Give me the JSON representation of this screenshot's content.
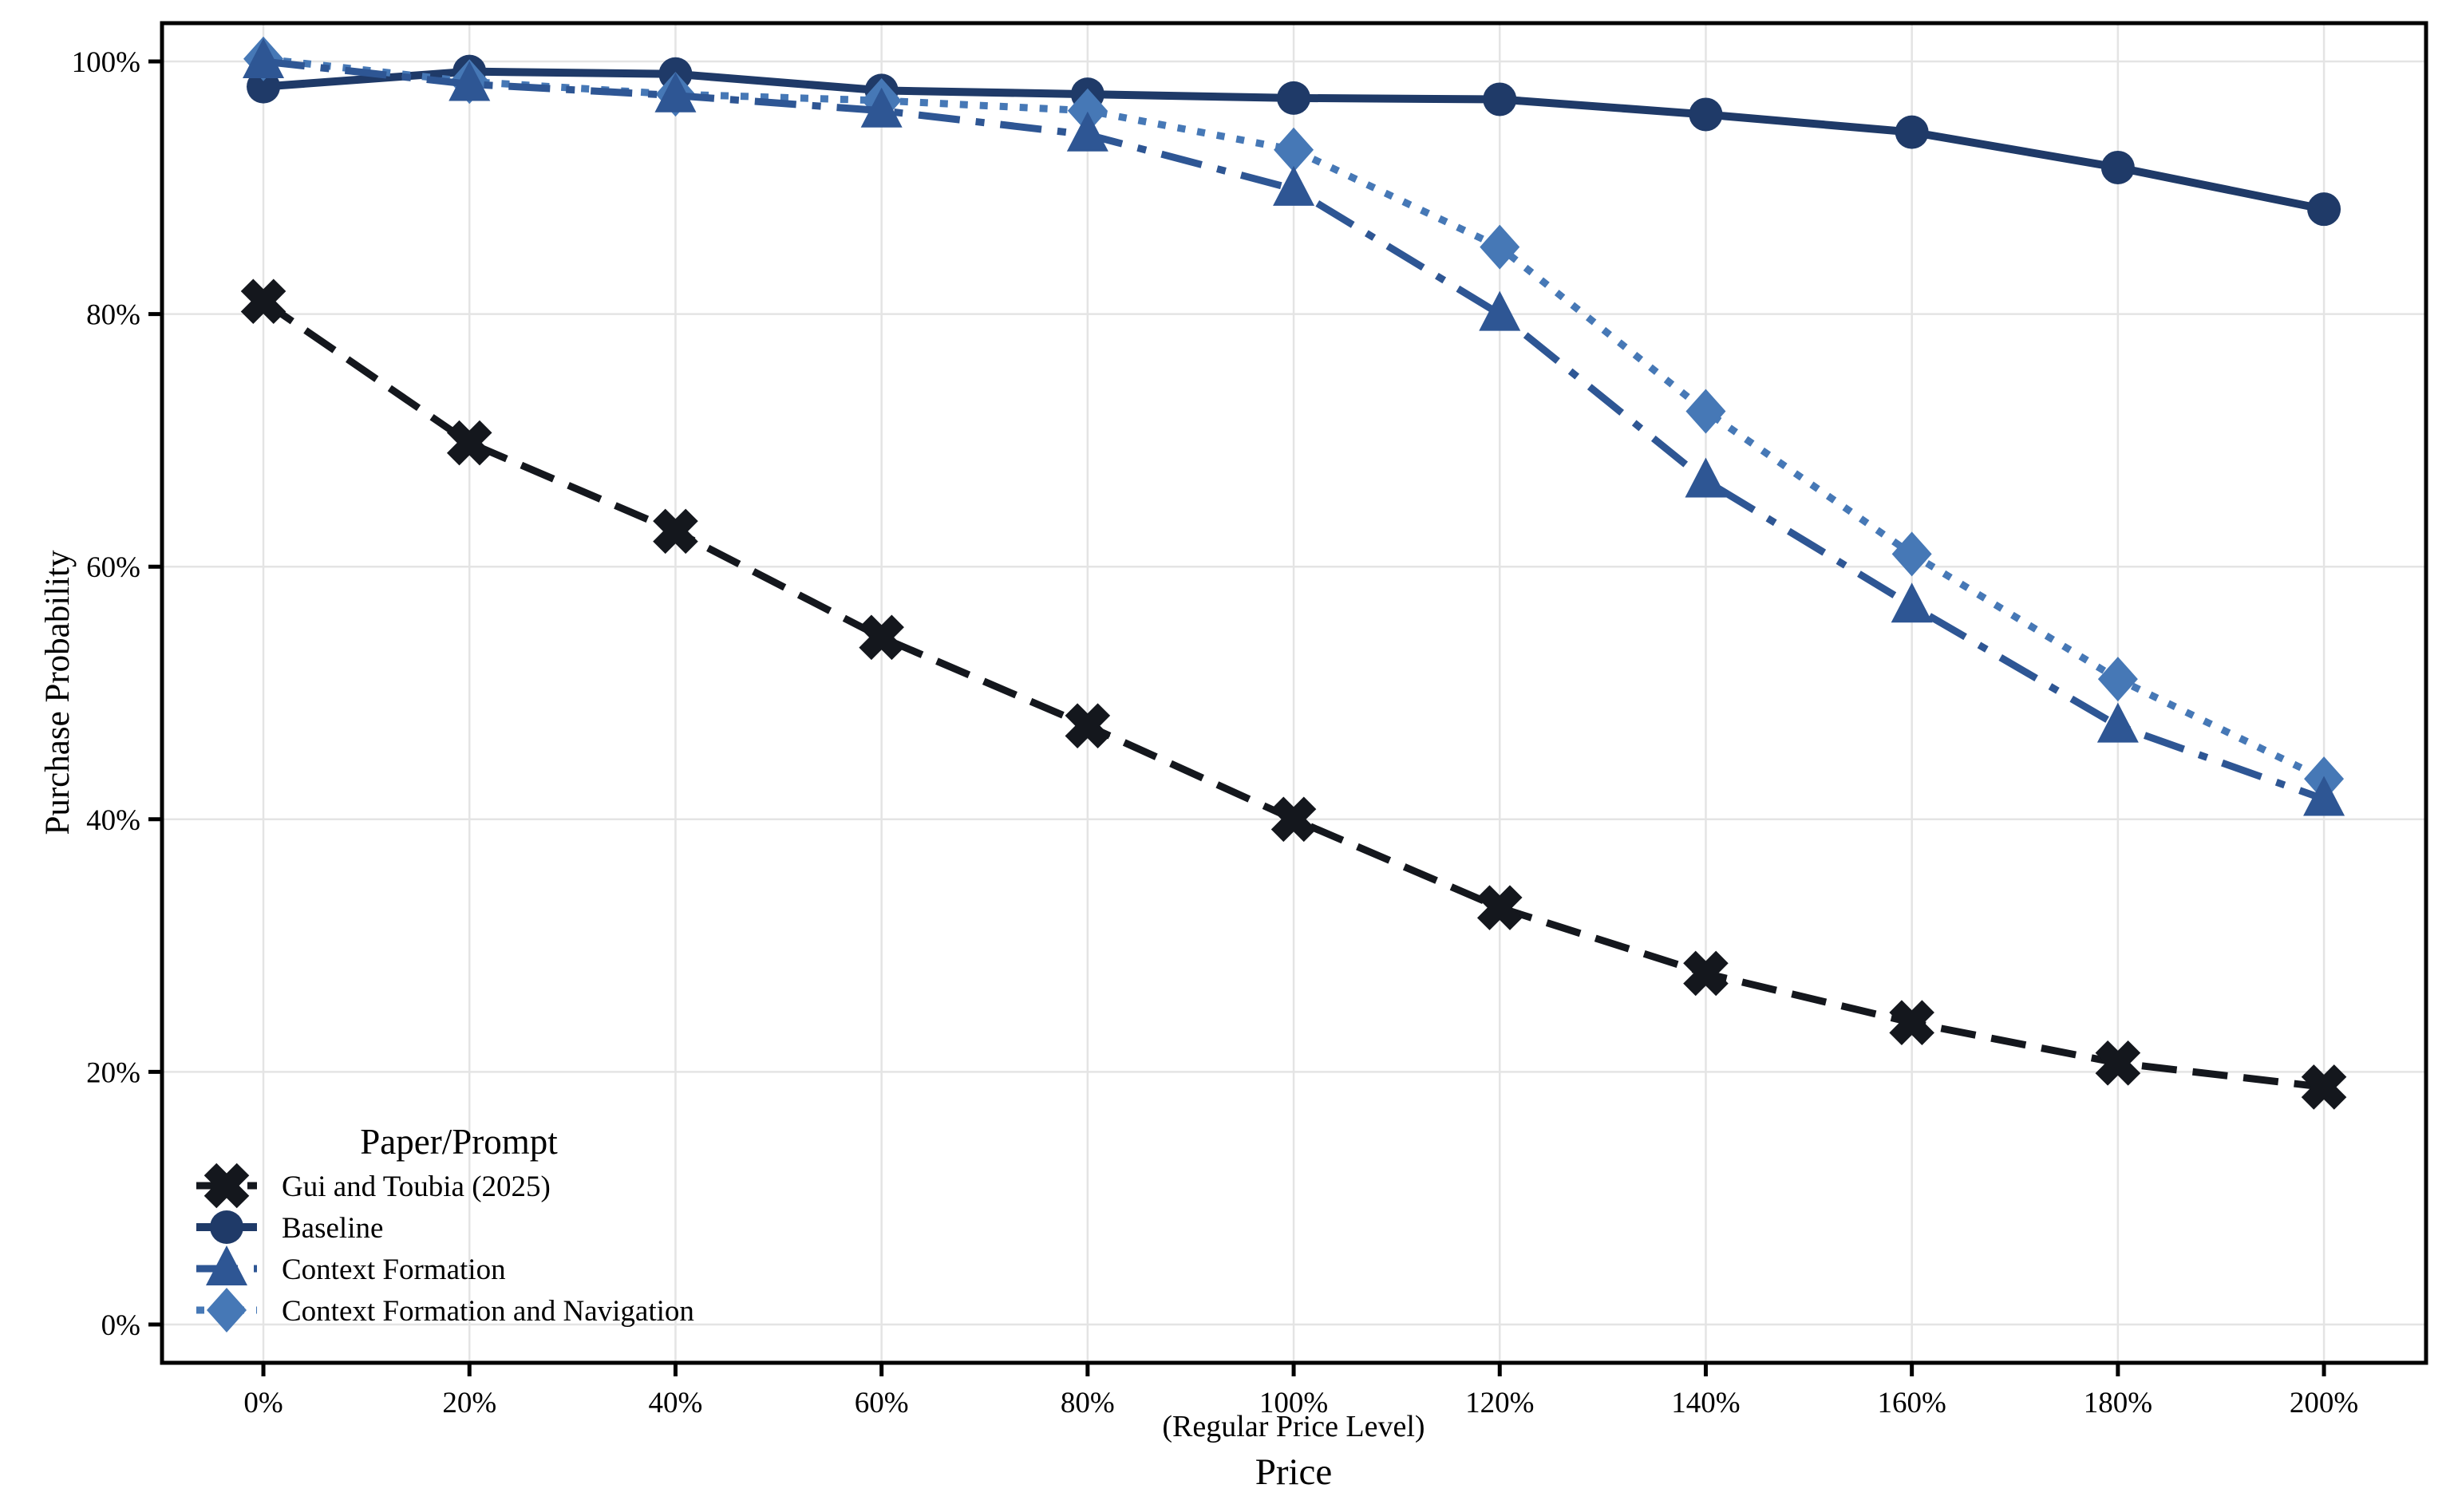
{
  "figure": {
    "background": "#ffffff",
    "text_color": "#000000"
  },
  "axes": {
    "y_label": "Purchase Probability",
    "x_note": "(Regular Price Level)",
    "x_label": "Price",
    "x_tick_labels": [
      "0%",
      "20%",
      "40%",
      "60%",
      "80%",
      "100%",
      "120%",
      "140%",
      "160%",
      "180%",
      "200%"
    ],
    "y_tick_labels": [
      "0%",
      "20%",
      "40%",
      "60%",
      "80%",
      "100%"
    ]
  },
  "legend": {
    "title": "Paper/Prompt",
    "labels": [
      "Gui and Toubia (2025)",
      "Baseline",
      "Context Formation",
      "Context Formation and Navigation"
    ]
  },
  "chart_data": {
    "type": "line",
    "title": "",
    "xlabel": "Price",
    "xlabel_note": "(Regular Price Level)",
    "ylabel": "Purchase Probability",
    "x": [
      0,
      20,
      40,
      60,
      80,
      100,
      120,
      140,
      160,
      180,
      200
    ],
    "x_tick_labels": [
      "0%",
      "20%",
      "40%",
      "60%",
      "80%",
      "100%",
      "120%",
      "140%",
      "160%",
      "180%",
      "200%"
    ],
    "y_ticks": [
      0,
      20,
      40,
      60,
      80,
      100
    ],
    "y_tick_labels": [
      "0%",
      "20%",
      "40%",
      "60%",
      "80%",
      "100%"
    ],
    "xlim": [
      -9.84,
      209.91
    ],
    "ylim": [
      -3.03,
      103.03
    ],
    "grid": true,
    "grid_color": "#e4e4e4",
    "legend_position": "lower-left",
    "legend_title": "Paper/Prompt",
    "series": [
      {
        "name": "Gui and Toubia (2025)",
        "marker": "x",
        "linestyle": "dashed",
        "color": "#14171d",
        "values": [
          81,
          69.8,
          62.8,
          54.4,
          47.4,
          40,
          33,
          27.8,
          23.9,
          20.7,
          18.8
        ]
      },
      {
        "name": "Baseline",
        "marker": "circle",
        "linestyle": "solid",
        "color": "#1f3a68",
        "values": [
          98,
          99.2,
          99,
          97.7,
          97.4,
          97.1,
          97,
          95.8,
          94.4,
          91.6,
          88.3
        ]
      },
      {
        "name": "Context Formation",
        "marker": "triangle",
        "linestyle": "dash-dot",
        "color": "#2e5694",
        "values": [
          100,
          98.2,
          97.3,
          96.1,
          94.2,
          89.9,
          80,
          66.8,
          56.9,
          47.4,
          41.6
        ]
      },
      {
        "name": "Context Formation and Navigation",
        "marker": "diamond",
        "linestyle": "dotted",
        "color": "#4678b6",
        "values": [
          100.2,
          98.4,
          97.4,
          96.9,
          96.1,
          93,
          85.3,
          72.3,
          61,
          51.1,
          43.2
        ]
      }
    ],
    "draw_order": [
      0,
      1,
      3,
      2
    ]
  }
}
